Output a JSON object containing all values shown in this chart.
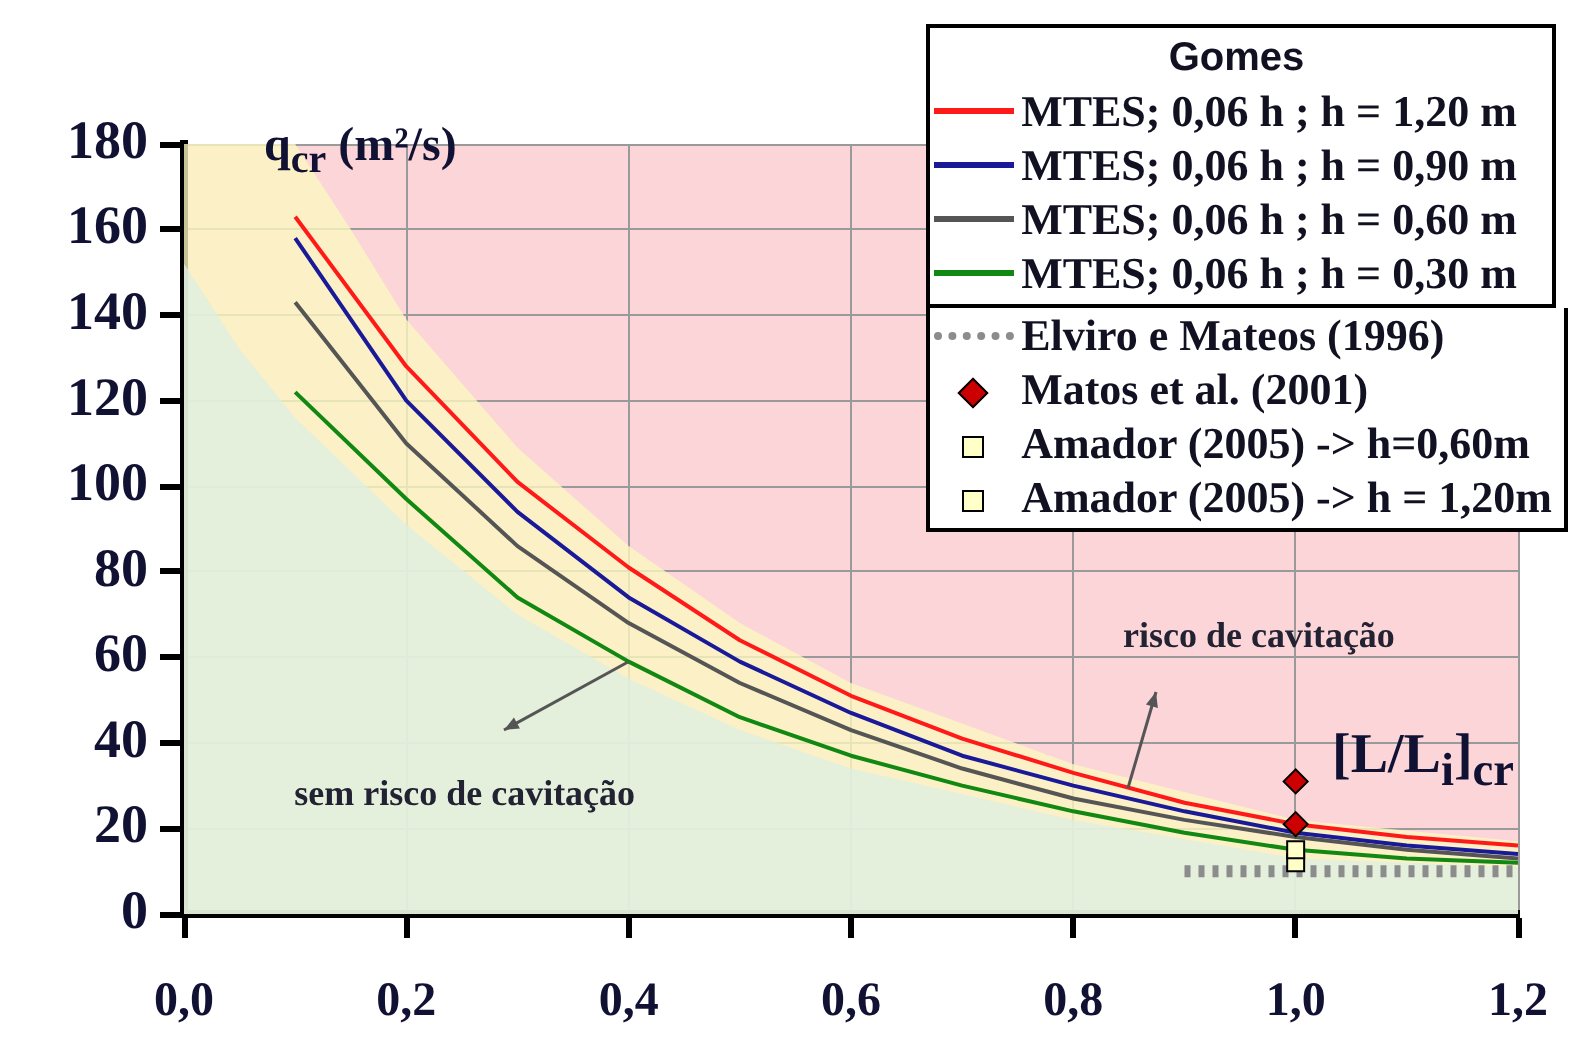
{
  "chart_data": {
    "type": "line",
    "xlabel": "[L/L$_{i}$]$_{cr}$",
    "ylabel": "q$_{cr}$ (m²/s)",
    "legend_title": "Gomes",
    "legend": "top right",
    "grid": true,
    "marker": "none",
    "xlim": [
      0,
      1.2
    ],
    "xticks": [
      {
        "value": 0,
        "label": "0,0"
      },
      {
        "value": 0.2,
        "label": "0,2"
      },
      {
        "value": 0.4,
        "label": "0,4"
      },
      {
        "value": 0.6,
        "label": "0,6"
      },
      {
        "value": 0.8,
        "label": "0,8"
      },
      {
        "value": 1,
        "label": "1,0"
      },
      {
        "value": 1.2,
        "label": "1,2"
      }
    ],
    "ylim": [
      0,
      180
    ],
    "yticks": [
      0,
      20,
      40,
      60,
      80,
      100,
      120,
      140,
      160,
      180
    ],
    "annotations": [
      {
        "text": "risco de cavitação",
        "x": 0.85,
        "y": 29.5
      },
      {
        "text": "sem risco de cavitação",
        "x": 0.4,
        "y": 59
      }
    ],
    "series": [
      {
        "type": "area",
        "color": "#fdf8c0",
        "x": [
          0,
          0.1,
          0.15,
          0.2,
          0.3,
          0.4,
          0.5,
          0.6,
          0.8,
          1.0,
          1.2
        ],
        "values": [
          180,
          180,
          160,
          139,
          109,
          86,
          68,
          54,
          35,
          22,
          17
        ]
      },
      {
        "type": "area",
        "color": "#dcefe2",
        "x": [
          0,
          0.05,
          0.1,
          0.2,
          0.3,
          0.4,
          0.5,
          0.6,
          0.8,
          1.0,
          1.2
        ],
        "values": [
          152,
          132,
          116,
          91,
          70,
          55,
          43,
          34,
          22,
          13,
          11
        ]
      },
      {
        "name": "MTES; 0,06 h ; h = 1,20 m",
        "color": "#ff1a1a",
        "x": [
          0.1,
          0.2,
          0.3,
          0.4,
          0.5,
          0.6,
          0.7,
          0.8,
          0.9,
          1.0,
          1.1,
          1.2
        ],
        "values": [
          163,
          128,
          101,
          81,
          64,
          51,
          41,
          33,
          26,
          21,
          18,
          16
        ]
      },
      {
        "name": "MTES; 0,06 h ; h = 0,90 m",
        "color": "#1a1a99",
        "x": [
          0.1,
          0.2,
          0.3,
          0.4,
          0.5,
          0.6,
          0.7,
          0.8,
          0.9,
          1.0,
          1.1,
          1.2
        ],
        "values": [
          158,
          120,
          94,
          74,
          59,
          47,
          37,
          30,
          24,
          19,
          16,
          14
        ]
      },
      {
        "name": "MTES; 0,06 h ; h = 0,60 m",
        "color": "#555555",
        "x": [
          0.1,
          0.2,
          0.3,
          0.4,
          0.5,
          0.6,
          0.7,
          0.8,
          0.9,
          1.0,
          1.1,
          1.2
        ],
        "values": [
          143,
          110,
          86,
          68,
          54,
          43,
          34,
          27,
          22,
          18,
          15,
          13
        ]
      },
      {
        "name": "MTES; 0,06 h ; h = 0,30 m",
        "color": "#118811",
        "x": [
          0.1,
          0.2,
          0.3,
          0.4,
          0.5,
          0.6,
          0.7,
          0.8,
          0.9,
          1.0,
          1.1,
          1.2
        ],
        "values": [
          122,
          97,
          74,
          59,
          46,
          37,
          30,
          24,
          19,
          15,
          13,
          12
        ]
      },
      {
        "name": "Elviro e Mateos (1996)",
        "type": "line",
        "color": "#8c8c8c",
        "line_style": "dotted",
        "x": [
          0.9,
          1.2
        ],
        "values": [
          10,
          10
        ]
      },
      {
        "name": "Matos et al. (2001)",
        "type": "scatter",
        "color": "#cc0000",
        "marker": "diamond",
        "x": [
          1,
          1
        ],
        "values": [
          31,
          21
        ]
      },
      {
        "name": "Amador (2005) -> h=0,60m",
        "type": "scatter",
        "color": "#ffffc8",
        "marker": "square",
        "x": [
          1
        ],
        "values": [
          12
        ]
      },
      {
        "name": "Amador (2005) -> h = 1,20m",
        "type": "scatter",
        "color": "#ffffc8",
        "marker": "square",
        "x": [
          1
        ],
        "values": [
          15
        ]
      }
    ]
  }
}
